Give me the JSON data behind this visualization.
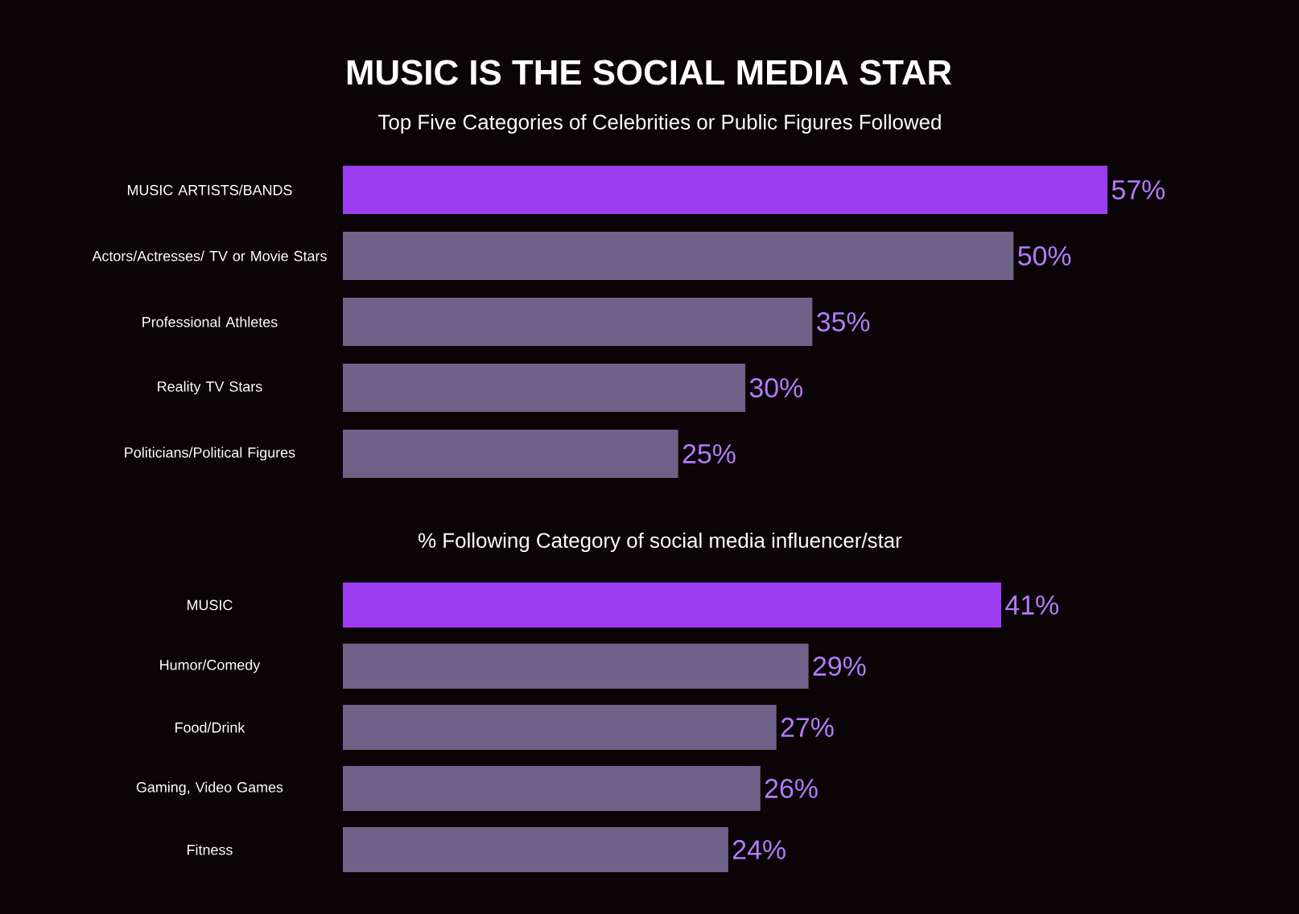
{
  "chart_data": [
    {
      "type": "bar",
      "orientation": "horizontal",
      "title": "MUSIC IS THE SOCIAL MEDIA STAR",
      "subtitle": "Top Five Categories of Celebrities or Public Figures Followed",
      "categories": [
        "MUSIC ARTISTS/BANDS",
        "Actors/Actresses/ TV or Movie Stars",
        "Professional Athletes",
        "Reality TV Stars",
        "Politicians/Political Figures"
      ],
      "values": [
        57,
        50,
        35,
        30,
        25
      ],
      "value_labels": [
        "57%",
        "50%",
        "35%",
        "30%",
        "25%"
      ],
      "colors": [
        "#9b3cf0",
        "#6e6288",
        "#6e6288",
        "#6e6288",
        "#6e6288"
      ]
    },
    {
      "type": "bar",
      "orientation": "horizontal",
      "subtitle": "% Following Category of social media influencer/star",
      "categories": [
        "MUSIC",
        "Humor/Comedy",
        "Food/Drink",
        "Gaming, Video Games",
        "Fitness"
      ],
      "values": [
        41,
        29,
        27,
        26,
        24
      ],
      "value_labels": [
        "41%",
        "29%",
        "27%",
        "26%",
        "24%"
      ],
      "colors": [
        "#9b3cf0",
        "#6e6288",
        "#6e6288",
        "#6e6288",
        "#6e6288"
      ]
    }
  ]
}
